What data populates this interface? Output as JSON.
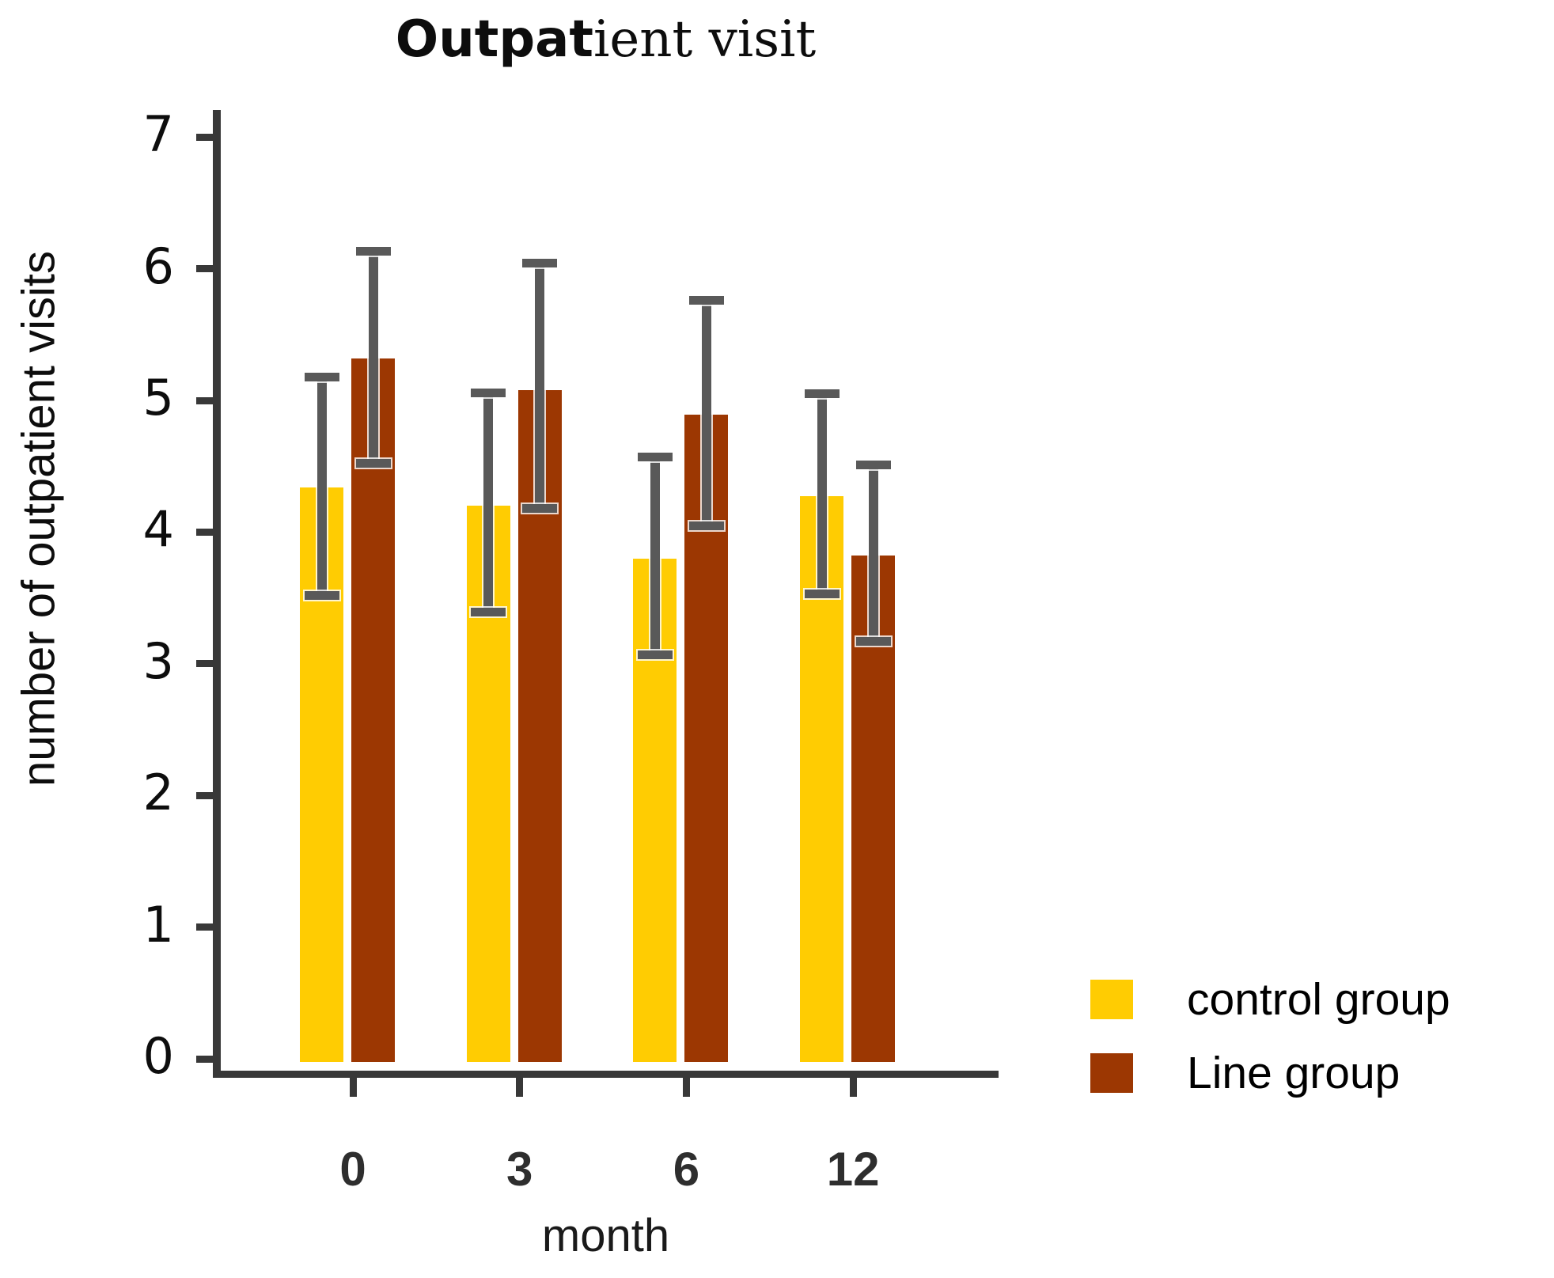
{
  "chart_data": {
    "type": "bar",
    "title": "Outpatient visit",
    "title_bold_part": "Outpat",
    "title_regular_part": "ient visit",
    "xlabel": "month",
    "ylabel": "number of outpatient visits",
    "categories": [
      "0",
      "3",
      "6",
      "12"
    ],
    "y_ticks": [
      0,
      1,
      2,
      3,
      4,
      5,
      6,
      7
    ],
    "ylim": [
      0,
      7
    ],
    "grid": false,
    "legend_position": "bottom-right",
    "axis_color": "#383838",
    "error_bar_color": "#595959",
    "series": [
      {
        "name": "control group",
        "color": "#FFCC02",
        "values": [
          4.34,
          4.2,
          3.8,
          4.27
        ],
        "error_upper": [
          5.18,
          5.06,
          4.57,
          5.05
        ],
        "error_lower": [
          3.52,
          3.39,
          3.07,
          3.53
        ]
      },
      {
        "name": "Line group",
        "color": "#9C3702",
        "values": [
          5.32,
          5.08,
          4.89,
          3.82
        ],
        "error_upper": [
          6.13,
          6.04,
          5.76,
          4.51
        ],
        "error_lower": [
          4.52,
          4.18,
          4.05,
          3.17
        ]
      }
    ]
  }
}
